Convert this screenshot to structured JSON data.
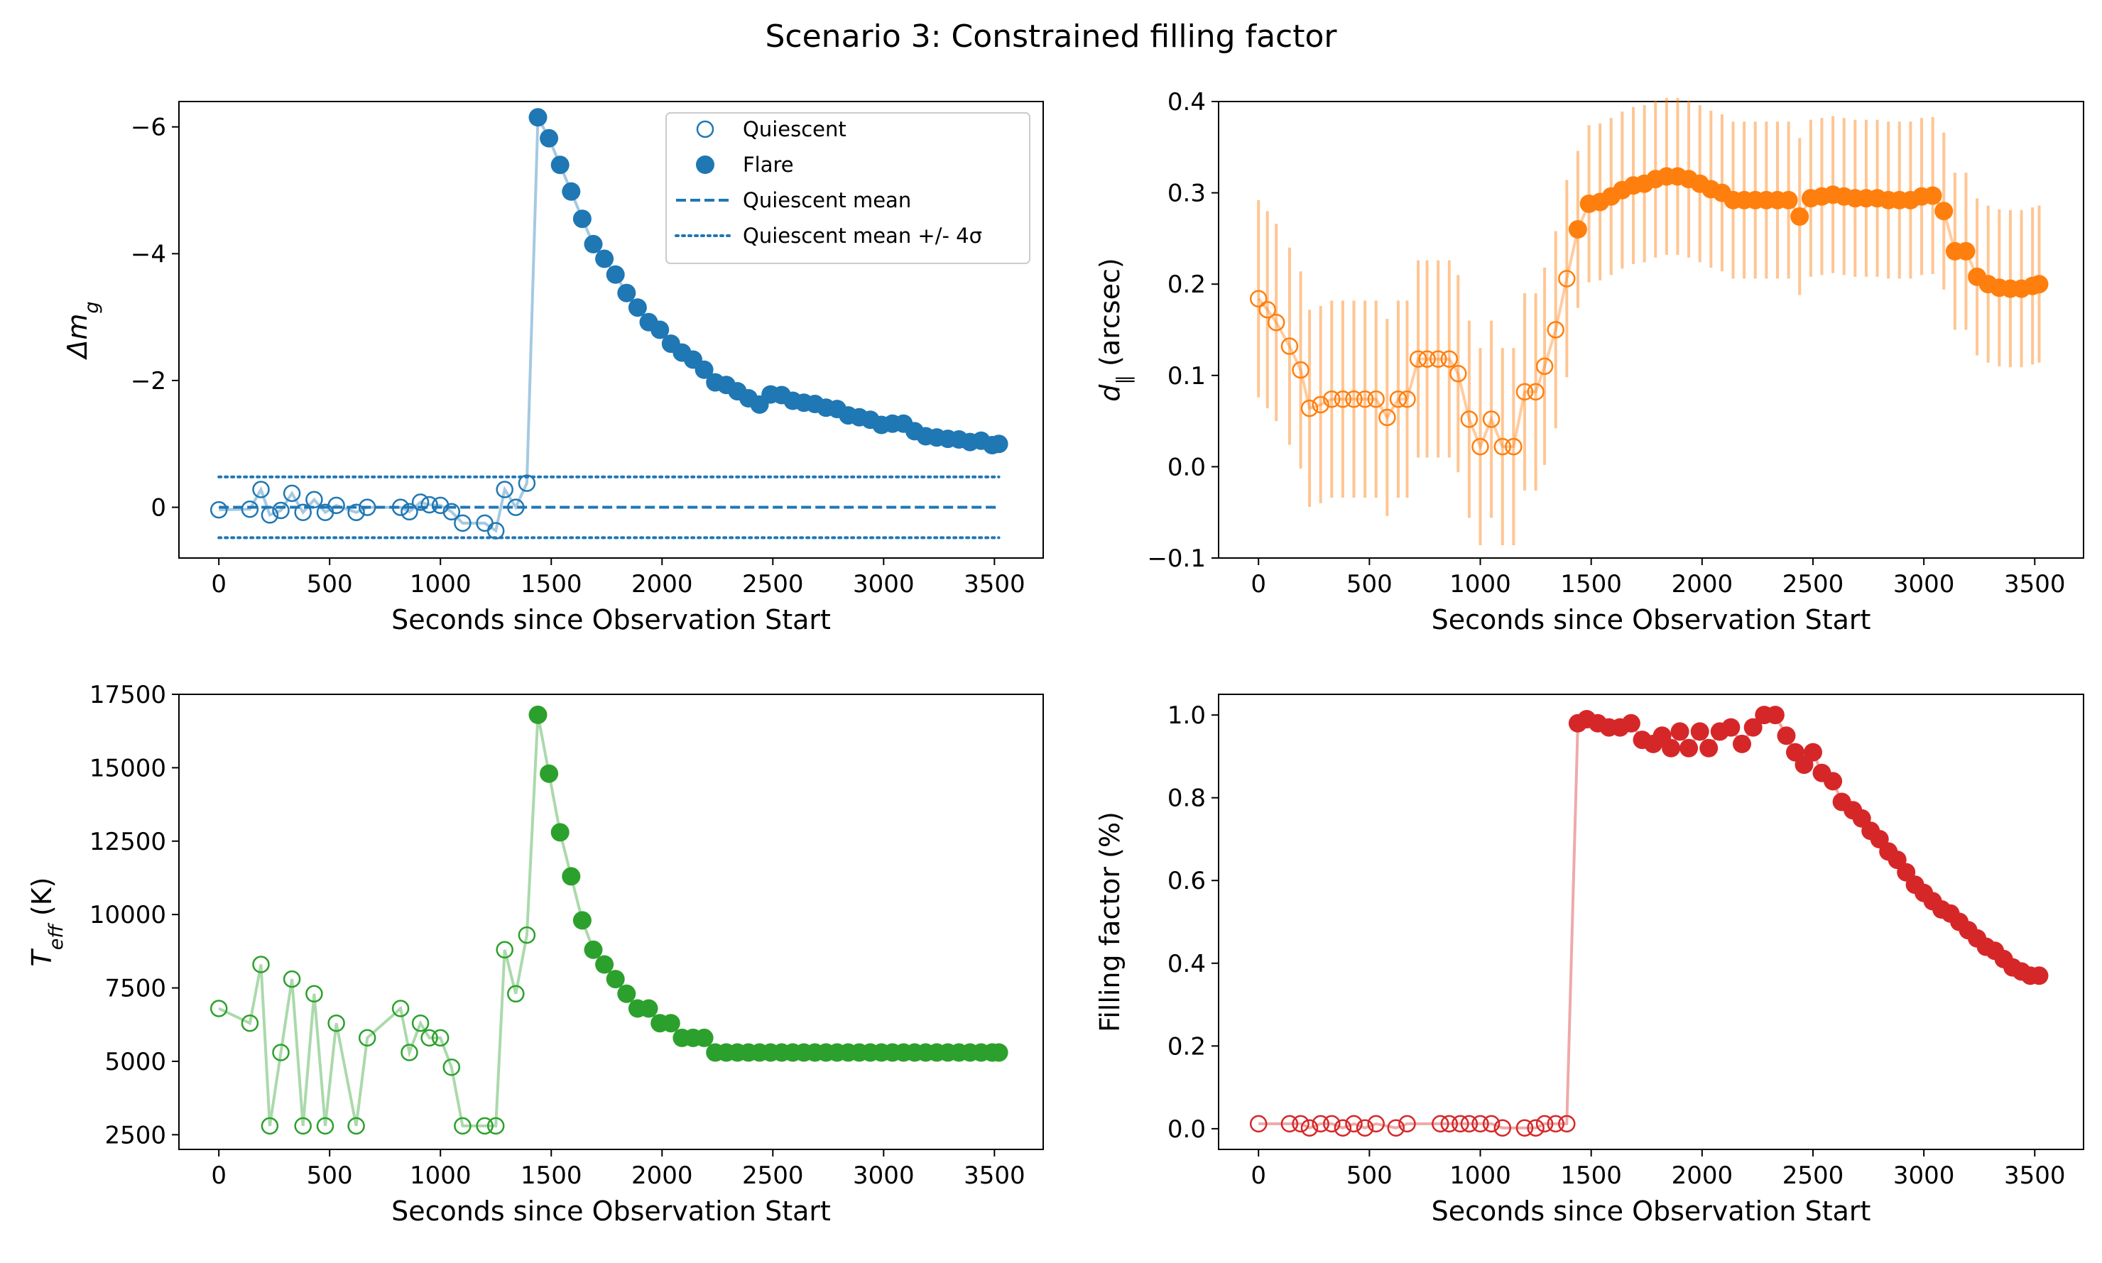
{
  "figure": {
    "title": "Scenario 3: Constrained filling factor"
  },
  "chart_data": [
    {
      "type": "scatter",
      "panel": "top-left",
      "xlabel": "Seconds since Observation Start",
      "ylabel": "Δm",
      "ylabel_sub": "g",
      "xlim": [
        -180,
        3720
      ],
      "ylim": [
        0.8,
        -6.4
      ],
      "y_inverted": true,
      "xticks": [
        0,
        500,
        1000,
        1500,
        2000,
        2500,
        3000,
        3500
      ],
      "yticks": [
        0,
        -2,
        -4,
        -6
      ],
      "ytick_labels": [
        "0",
        "−2",
        "−4",
        "−6"
      ],
      "color": "#1f77b4",
      "legend_position": "top-right",
      "legend": [
        "Quiescent",
        "Flare",
        "Quiescent mean",
        "Quiescent mean +/- 4σ"
      ],
      "quiescent_mean": 0.0,
      "quiescent_band": [
        0.48,
        -0.48
      ],
      "series": [
        {
          "name": "Quiescent",
          "marker": "open",
          "x": [
            0,
            140,
            190,
            230,
            280,
            330,
            380,
            430,
            480,
            530,
            620,
            670,
            820,
            860,
            910,
            950,
            1000,
            1050,
            1100,
            1200,
            1250,
            1290,
            1340,
            1390
          ],
          "y": [
            0.04,
            0.03,
            -0.28,
            0.12,
            0.05,
            -0.22,
            0.08,
            -0.12,
            0.08,
            -0.03,
            0.08,
            0.0,
            0.0,
            0.07,
            -0.08,
            -0.04,
            -0.03,
            0.07,
            0.25,
            0.25,
            0.37,
            -0.28,
            0.0,
            -0.38
          ]
        },
        {
          "name": "Flare",
          "marker": "filled",
          "x": [
            1440,
            1490,
            1540,
            1590,
            1640,
            1690,
            1740,
            1790,
            1840,
            1890,
            1940,
            1990,
            2040,
            2090,
            2140,
            2190,
            2240,
            2290,
            2340,
            2390,
            2440,
            2490,
            2540,
            2590,
            2640,
            2690,
            2740,
            2790,
            2840,
            2890,
            2940,
            2990,
            3040,
            3090,
            3140,
            3190,
            3240,
            3290,
            3340,
            3390,
            3440,
            3490,
            3520
          ],
          "y": [
            -6.15,
            -5.82,
            -5.4,
            -4.98,
            -4.55,
            -4.15,
            -3.92,
            -3.67,
            -3.38,
            -3.15,
            -2.92,
            -2.8,
            -2.58,
            -2.44,
            -2.33,
            -2.17,
            -1.97,
            -1.93,
            -1.83,
            -1.72,
            -1.62,
            -1.78,
            -1.77,
            -1.68,
            -1.65,
            -1.63,
            -1.57,
            -1.55,
            -1.45,
            -1.42,
            -1.38,
            -1.3,
            -1.32,
            -1.32,
            -1.2,
            -1.12,
            -1.1,
            -1.08,
            -1.07,
            -1.03,
            -1.05,
            -0.98,
            -1.0
          ]
        }
      ]
    },
    {
      "type": "scatter",
      "panel": "top-right",
      "xlabel": "Seconds since Observation Start",
      "ylabel": "d",
      "ylabel_sub": "∥",
      "ylabel_suffix": " (arcsec)",
      "xlim": [
        -180,
        3720
      ],
      "ylim": [
        -0.1,
        0.4
      ],
      "xticks": [
        0,
        500,
        1000,
        1500,
        2000,
        2500,
        3000,
        3500
      ],
      "yticks": [
        -0.1,
        0.0,
        0.1,
        0.2,
        0.3,
        0.4
      ],
      "ytick_labels": [
        "−0.1",
        "0.0",
        "0.1",
        "0.2",
        "0.3",
        "0.4"
      ],
      "color": "#ff7f0e",
      "series": [
        {
          "name": "Quiescent",
          "marker": "open",
          "error_halfwidth": 0.108,
          "x": [
            0,
            40,
            80,
            140,
            190,
            230,
            280,
            330,
            380,
            430,
            480,
            530,
            580,
            630,
            670,
            720,
            760,
            810,
            860,
            900,
            950,
            1000,
            1050,
            1100,
            1150,
            1200,
            1250,
            1290,
            1340,
            1390
          ],
          "y": [
            0.184,
            0.172,
            0.158,
            0.132,
            0.106,
            0.064,
            0.068,
            0.074,
            0.074,
            0.074,
            0.074,
            0.074,
            0.054,
            0.074,
            0.074,
            0.118,
            0.118,
            0.118,
            0.118,
            0.102,
            0.052,
            0.022,
            0.052,
            0.022,
            0.022,
            0.082,
            0.082,
            0.11,
            0.15,
            0.206
          ]
        },
        {
          "name": "Flare",
          "marker": "filled",
          "error_halfwidth": 0.086,
          "x": [
            1440,
            1490,
            1540,
            1590,
            1640,
            1690,
            1740,
            1790,
            1840,
            1890,
            1940,
            1990,
            2040,
            2090,
            2140,
            2190,
            2240,
            2290,
            2340,
            2390,
            2440,
            2490,
            2540,
            2590,
            2640,
            2690,
            2740,
            2790,
            2840,
            2890,
            2940,
            2990,
            3040,
            3090,
            3140,
            3190,
            3240,
            3290,
            3340,
            3390,
            3440,
            3490,
            3520
          ],
          "y": [
            0.26,
            0.288,
            0.29,
            0.296,
            0.303,
            0.308,
            0.31,
            0.315,
            0.318,
            0.318,
            0.315,
            0.31,
            0.304,
            0.3,
            0.292,
            0.292,
            0.292,
            0.292,
            0.292,
            0.292,
            0.274,
            0.294,
            0.296,
            0.298,
            0.296,
            0.294,
            0.294,
            0.294,
            0.292,
            0.292,
            0.292,
            0.296,
            0.297,
            0.28,
            0.236,
            0.236,
            0.208,
            0.2,
            0.196,
            0.195,
            0.195,
            0.198,
            0.2
          ]
        }
      ]
    },
    {
      "type": "line",
      "panel": "bottom-left",
      "xlabel": "Seconds since Observation Start",
      "ylabel": "T",
      "ylabel_sub": "eff",
      "ylabel_suffix": " (K)",
      "xlim": [
        -180,
        3720
      ],
      "ylim": [
        2000,
        17500
      ],
      "xticks": [
        0,
        500,
        1000,
        1500,
        2000,
        2500,
        3000,
        3500
      ],
      "yticks": [
        2500,
        5000,
        7500,
        10000,
        12500,
        15000,
        17500
      ],
      "ytick_labels": [
        "2500",
        "5000",
        "7500",
        "10000",
        "12500",
        "15000",
        "17500"
      ],
      "color": "#2ca02c",
      "series": [
        {
          "name": "Quiescent",
          "marker": "open",
          "x": [
            0,
            140,
            190,
            230,
            280,
            330,
            380,
            430,
            480,
            530,
            620,
            670,
            820,
            860,
            910,
            950,
            1000,
            1050,
            1100,
            1200,
            1250,
            1290,
            1340,
            1390
          ],
          "y": [
            6800,
            6300,
            8300,
            2800,
            5300,
            7800,
            2800,
            7300,
            2800,
            6300,
            2800,
            5800,
            6800,
            5300,
            6300,
            5800,
            5800,
            4800,
            2800,
            2800,
            2800,
            8800,
            7300,
            9300
          ]
        },
        {
          "name": "Flare",
          "marker": "filled",
          "x": [
            1440,
            1490,
            1540,
            1590,
            1640,
            1690,
            1740,
            1790,
            1840,
            1890,
            1940,
            1990,
            2040,
            2090,
            2140,
            2190,
            2240,
            2290,
            2340,
            2390,
            2440,
            2490,
            2540,
            2590,
            2640,
            2690,
            2740,
            2790,
            2840,
            2890,
            2940,
            2990,
            3040,
            3090,
            3140,
            3190,
            3240,
            3290,
            3340,
            3390,
            3440,
            3490,
            3520
          ],
          "y": [
            16800,
            14800,
            12800,
            11300,
            9800,
            8800,
            8300,
            7800,
            7300,
            6800,
            6800,
            6300,
            6300,
            5800,
            5800,
            5800,
            5300,
            5300,
            5300,
            5300,
            5300,
            5300,
            5300,
            5300,
            5300,
            5300,
            5300,
            5300,
            5300,
            5300,
            5300,
            5300,
            5300,
            5300,
            5300,
            5300,
            5300,
            5300,
            5300,
            5300,
            5300,
            5300,
            5300
          ]
        }
      ]
    },
    {
      "type": "line",
      "panel": "bottom-right",
      "xlabel": "Seconds since Observation Start",
      "ylabel": "Filling factor (%)",
      "xlim": [
        -180,
        3720
      ],
      "ylim": [
        -0.05,
        1.05
      ],
      "xticks": [
        0,
        500,
        1000,
        1500,
        2000,
        2500,
        3000,
        3500
      ],
      "yticks": [
        0.0,
        0.2,
        0.4,
        0.6,
        0.8,
        1.0
      ],
      "ytick_labels": [
        "0.0",
        "0.2",
        "0.4",
        "0.6",
        "0.8",
        "1.0"
      ],
      "color": "#d62728",
      "series": [
        {
          "name": "Quiescent",
          "marker": "open",
          "x": [
            0,
            140,
            190,
            230,
            280,
            330,
            380,
            430,
            480,
            530,
            620,
            670,
            820,
            860,
            910,
            950,
            1000,
            1050,
            1100,
            1200,
            1250,
            1290,
            1340,
            1390
          ],
          "y": [
            0.012,
            0.012,
            0.012,
            0.002,
            0.012,
            0.012,
            0.002,
            0.012,
            0.002,
            0.012,
            0.002,
            0.012,
            0.012,
            0.012,
            0.012,
            0.012,
            0.012,
            0.012,
            0.002,
            0.002,
            0.002,
            0.012,
            0.012,
            0.012
          ]
        },
        {
          "name": "Flare",
          "marker": "filled",
          "x": [
            1440,
            1480,
            1530,
            1580,
            1630,
            1680,
            1730,
            1780,
            1820,
            1860,
            1900,
            1940,
            1990,
            2030,
            2080,
            2130,
            2180,
            2230,
            2280,
            2330,
            2380,
            2420,
            2460,
            2500,
            2540,
            2590,
            2630,
            2680,
            2720,
            2760,
            2800,
            2840,
            2880,
            2920,
            2960,
            3000,
            3040,
            3080,
            3120,
            3160,
            3200,
            3240,
            3280,
            3320,
            3360,
            3400,
            3440,
            3480,
            3520
          ],
          "y": [
            0.98,
            0.99,
            0.98,
            0.97,
            0.97,
            0.98,
            0.94,
            0.93,
            0.95,
            0.92,
            0.96,
            0.92,
            0.96,
            0.92,
            0.96,
            0.97,
            0.93,
            0.97,
            1.0,
            1.0,
            0.95,
            0.91,
            0.88,
            0.91,
            0.86,
            0.84,
            0.79,
            0.77,
            0.75,
            0.72,
            0.7,
            0.67,
            0.65,
            0.62,
            0.59,
            0.57,
            0.55,
            0.53,
            0.52,
            0.5,
            0.48,
            0.46,
            0.44,
            0.43,
            0.41,
            0.39,
            0.38,
            0.37,
            0.37
          ]
        }
      ]
    }
  ]
}
